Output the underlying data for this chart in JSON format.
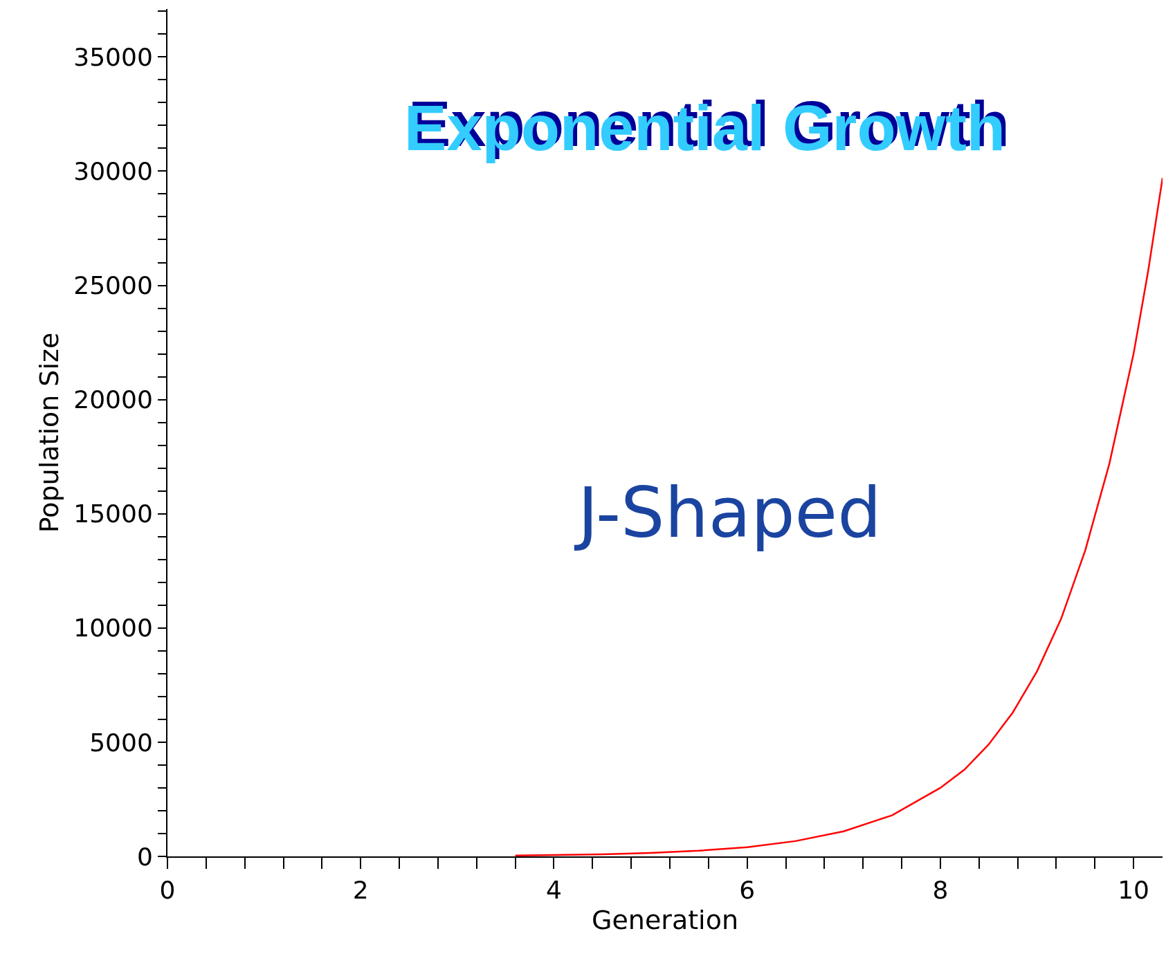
{
  "chart_data": {
    "type": "line",
    "title": "Exponential Growth",
    "xlabel": "Generation",
    "ylabel": "Population Size",
    "x": [
      3.6,
      4,
      4.5,
      5,
      5.5,
      6,
      6.5,
      7,
      7.5,
      8,
      8.25,
      8.5,
      8.75,
      9,
      9.25,
      9.5,
      9.75,
      10,
      10.15,
      10.3
    ],
    "series": [
      {
        "color": "#ff0000",
        "values": [
          40,
          60,
          90,
          150,
          250,
          400,
          670,
          1100,
          1800,
          3000,
          3800,
          4900,
          6300,
          8100,
          10400,
          13400,
          17200,
          22000,
          25600,
          29700
        ]
      }
    ],
    "annotations": [
      "J-Shaped"
    ],
    "xlim": [
      0,
      10.3
    ],
    "ylim": [
      0,
      37100
    ],
    "xticks": [
      0,
      {
        "value": 0.4,
        "label": null
      },
      {
        "value": 0.8,
        "label": null
      },
      {
        "value": 1.2,
        "label": null
      },
      {
        "value": 1.6,
        "label": null
      },
      2,
      {
        "value": 2.4,
        "label": null
      },
      {
        "value": 2.8,
        "label": null
      },
      {
        "value": 3.2,
        "label": null
      },
      {
        "value": 3.6,
        "label": null
      },
      4,
      {
        "value": 4.4,
        "label": null
      },
      {
        "value": 4.8,
        "label": null
      },
      {
        "value": 5.2,
        "label": null
      },
      {
        "value": 5.6,
        "label": null
      },
      6,
      {
        "value": 6.4,
        "label": null
      },
      {
        "value": 6.8,
        "label": null
      },
      {
        "value": 7.2,
        "label": null
      },
      {
        "value": 7.6,
        "label": null
      },
      8,
      {
        "value": 8.4,
        "label": null
      },
      {
        "value": 8.8,
        "label": null
      },
      {
        "value": 9.2,
        "label": null
      },
      {
        "value": 9.6,
        "label": null
      },
      10
    ],
    "yticks": [
      0,
      {
        "value": 1000,
        "label": null
      },
      {
        "value": 2000,
        "label": null
      },
      {
        "value": 3000,
        "label": null
      },
      {
        "value": 4000,
        "label": null
      },
      5000,
      {
        "value": 6000,
        "label": null
      },
      {
        "value": 7000,
        "label": null
      },
      {
        "value": 8000,
        "label": null
      },
      {
        "value": 9000,
        "label": null
      },
      10000,
      {
        "value": 11000,
        "label": null
      },
      {
        "value": 12000,
        "label": null
      },
      {
        "value": 13000,
        "label": null
      },
      {
        "value": 14000,
        "label": null
      },
      15000,
      {
        "value": 16000,
        "label": null
      },
      {
        "value": 17000,
        "label": null
      },
      {
        "value": 18000,
        "label": null
      },
      {
        "value": 19000,
        "label": null
      },
      20000,
      {
        "value": 21000,
        "label": null
      },
      {
        "value": 22000,
        "label": null
      },
      {
        "value": 23000,
        "label": null
      },
      {
        "value": 24000,
        "label": null
      },
      25000,
      {
        "value": 26000,
        "label": null
      },
      {
        "value": 27000,
        "label": null
      },
      {
        "value": 28000,
        "label": null
      },
      {
        "value": 29000,
        "label": null
      },
      30000,
      {
        "value": 31000,
        "label": null
      },
      {
        "value": 32000,
        "label": null
      },
      {
        "value": 33000,
        "label": null
      },
      {
        "value": 34000,
        "label": null
      },
      35000,
      {
        "value": 36000,
        "label": null
      },
      {
        "value": 37000,
        "label": null
      }
    ],
    "grid": false,
    "marker": "none",
    "line_style": "solid"
  }
}
